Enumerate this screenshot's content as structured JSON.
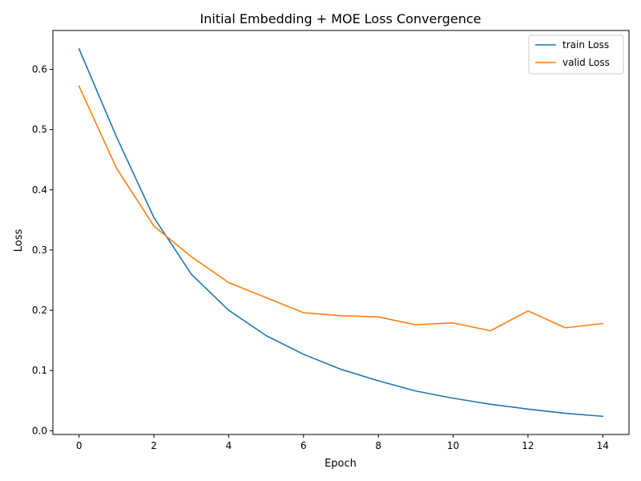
{
  "chart_data": {
    "type": "line",
    "title": "Initial Embedding + MOE Loss Convergence",
    "xlabel": "Epoch",
    "ylabel": "Loss",
    "xlim": [
      -0.7,
      14.7
    ],
    "ylim": [
      -0.0062,
      0.6646
    ],
    "x_ticks": [
      0,
      2,
      4,
      6,
      8,
      10,
      12,
      14
    ],
    "x_tick_labels": [
      "0",
      "2",
      "4",
      "6",
      "8",
      "10",
      "12",
      "14"
    ],
    "y_ticks": [
      0.0,
      0.1,
      0.2,
      0.3,
      0.4,
      0.5,
      0.6
    ],
    "y_tick_labels": [
      "0.0",
      "0.1",
      "0.2",
      "0.3",
      "0.4",
      "0.5",
      "0.6"
    ],
    "grid": false,
    "legend_position": "top-right",
    "x": [
      0,
      1,
      2,
      3,
      4,
      5,
      6,
      7,
      8,
      9,
      10,
      11,
      12,
      13,
      14
    ],
    "series": [
      {
        "name": "train Loss",
        "color": "#1f77b4",
        "values": [
          0.634,
          0.488,
          0.354,
          0.26,
          0.2,
          0.158,
          0.127,
          0.102,
          0.083,
          0.066,
          0.054,
          0.044,
          0.036,
          0.029,
          0.024
        ]
      },
      {
        "name": "valid Loss",
        "color": "#ff7f0e",
        "values": [
          0.572,
          0.436,
          0.34,
          0.289,
          0.246,
          0.221,
          0.196,
          0.191,
          0.189,
          0.176,
          0.179,
          0.166,
          0.199,
          0.171,
          0.178
        ]
      }
    ]
  }
}
